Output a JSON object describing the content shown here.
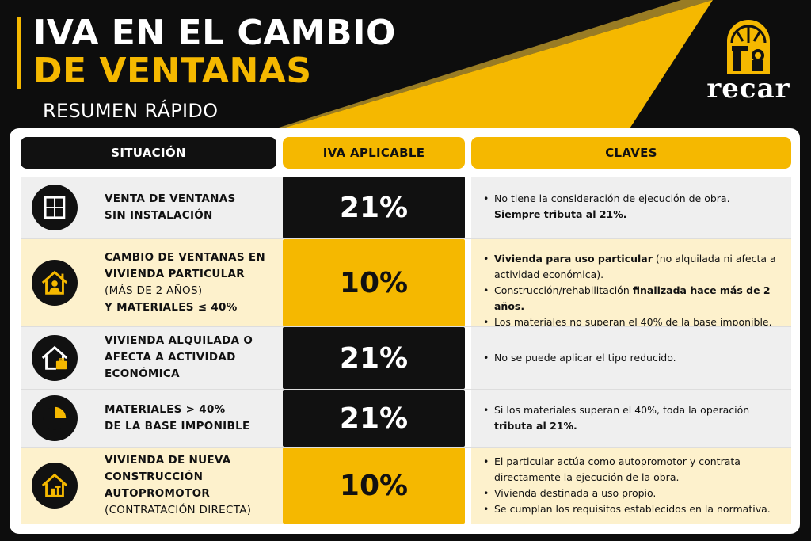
{
  "header": {
    "title_line1": "IVA EN EL CAMBIO",
    "title_line2": "DE VENTANAS",
    "subtitle": "RESUMEN RÁPIDO"
  },
  "logo": {
    "text": "recar",
    "icon": "arched-window-logo-icon"
  },
  "colors": {
    "accent": "#f5b800",
    "dark": "#111111",
    "cream": "#fdf1cc",
    "grey": "#efefef"
  },
  "table": {
    "headers": {
      "situacion": "SITUACIÓN",
      "iva": "IVA APLICABLE",
      "claves": "CLAVES"
    },
    "rows": [
      {
        "icon": "window-icon",
        "situacion": [
          "VENTA DE VENTANAS",
          "SIN INSTALACIÓN"
        ],
        "iva": "21%",
        "claves": [
          {
            "pre": "No tiene la consideración de ejecución de obra.",
            "bold": "",
            "post": ""
          },
          {
            "pre": "",
            "bold": "Siempre tributa al 21%.",
            "post": ""
          }
        ]
      },
      {
        "icon": "house-person-icon",
        "situacion": [
          "CAMBIO DE VENTANAS EN",
          "VIVIENDA PARTICULAR",
          "(MÁS DE 2 AÑOS)",
          "Y MATERIALES ≤ 40%"
        ],
        "iva": "10%",
        "claves": [
          {
            "pre": "",
            "bold": "Vivienda para uso particular",
            "post": " (no alquilada ni afecta a actividad económica)."
          },
          {
            "pre": "Construcción/rehabilitación ",
            "bold": "finalizada hace más de 2 años.",
            "post": ""
          },
          {
            "pre": "Los materiales no superan el 40% de la base imponible.",
            "bold": "",
            "post": ""
          }
        ]
      },
      {
        "icon": "house-briefcase-icon",
        "situacion": [
          "VIVIENDA ALQUILADA O",
          "AFECTA A ACTIVIDAD",
          "ECONÓMICA"
        ],
        "iva": "21%",
        "claves": [
          {
            "pre": "No se puede aplicar el tipo reducido.",
            "bold": "",
            "post": ""
          }
        ]
      },
      {
        "icon": "pie-quarter-icon",
        "situacion": [
          "MATERIALES > 40%",
          "DE LA BASE IMPONIBLE"
        ],
        "iva": "21%",
        "claves": [
          {
            "pre": "Si los materiales superan el 40%, toda la operación ",
            "bold": "tributa al 21%.",
            "post": ""
          }
        ]
      },
      {
        "icon": "house-tools-icon",
        "situacion": [
          "VIVIENDA DE NUEVA",
          "CONSTRUCCIÓN",
          "AUTOPROMOTOR",
          "(CONTRATACIÓN DIRECTA)"
        ],
        "iva": "10%",
        "claves": [
          {
            "pre": "El particular actúa como autopromotor y contrata directamente la ejecución de la obra.",
            "bold": "",
            "post": ""
          },
          {
            "pre": "Vivienda destinada a uso propio.",
            "bold": "",
            "post": ""
          },
          {
            "pre": "Se cumplan los requisitos establecidos en la normativa.",
            "bold": "",
            "post": ""
          }
        ]
      }
    ]
  }
}
